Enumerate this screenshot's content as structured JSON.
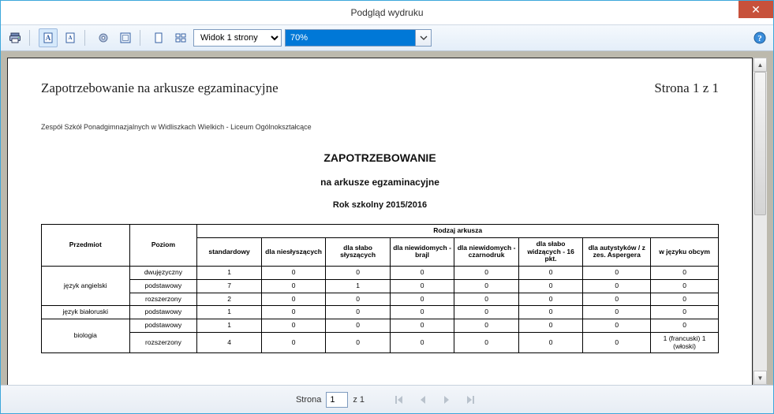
{
  "window": {
    "title": "Podgląd wydruku",
    "close_glyph": "✕"
  },
  "toolbar": {
    "view_select": "Widok 1 strony",
    "zoom": "70%"
  },
  "colors": {
    "selection_bg": "#0078d7",
    "close_bg": "#c7513b",
    "toolbar_border": "#bac6d4"
  },
  "doc": {
    "header_title": "Zapotrzebowanie na arkusze egzaminacyjne",
    "page_indicator": "Strona 1 z 1",
    "school": "Zespół Szkół Ponadgimnazjalnych w Widliszkach Wielkich - Liceum Ogólnokształcące",
    "title1": "ZAPOTRZEBOWANIE",
    "title2": "na arkusze egzaminacyjne",
    "title3": "Rok szkolny 2015/2016"
  },
  "table": {
    "col_subject": "Przedmiot",
    "col_level": "Poziom",
    "col_group": "Rodzaj arkusza",
    "columns": [
      "standardowy",
      "dla niesłyszących",
      "dla słabo słyszących",
      "dla niewidomych - brajl",
      "dla niewidomych - czarnodruk",
      "dla słabo widzących - 16 pkt.",
      "dla autystyków / z zes. Aspergera",
      "w języku obcym"
    ],
    "rows": [
      {
        "subject": "język angielski",
        "levels": [
          {
            "name": "dwujęzyczny",
            "v": [
              "1",
              "0",
              "0",
              "0",
              "0",
              "0",
              "0",
              "0"
            ]
          },
          {
            "name": "podstawowy",
            "v": [
              "7",
              "0",
              "1",
              "0",
              "0",
              "0",
              "0",
              "0"
            ]
          },
          {
            "name": "rozszerzony",
            "v": [
              "2",
              "0",
              "0",
              "0",
              "0",
              "0",
              "0",
              "0"
            ]
          }
        ]
      },
      {
        "subject": "język białoruski",
        "levels": [
          {
            "name": "podstawowy",
            "v": [
              "1",
              "0",
              "0",
              "0",
              "0",
              "0",
              "0",
              "0"
            ]
          }
        ]
      },
      {
        "subject": "biologia",
        "levels": [
          {
            "name": "podstawowy",
            "v": [
              "1",
              "0",
              "0",
              "0",
              "0",
              "0",
              "0",
              "0"
            ]
          },
          {
            "name": "rozszerzony",
            "v": [
              "4",
              "0",
              "0",
              "0",
              "0",
              "0",
              "0",
              "1 (francuski) 1 (włoski)"
            ]
          }
        ]
      }
    ]
  },
  "status": {
    "label_page": "Strona",
    "page_value": "1",
    "page_total": "z 1"
  }
}
